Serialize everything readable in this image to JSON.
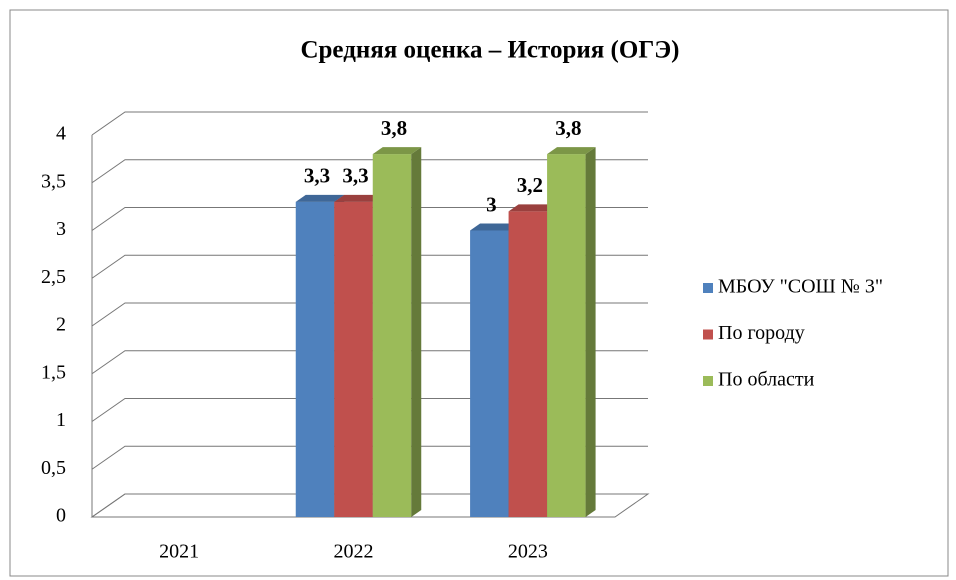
{
  "chart_data": {
    "type": "bar3d",
    "title": "Средняя оценка – История (ОГЭ)",
    "categories": [
      "2021",
      "2022",
      "2023"
    ],
    "series": [
      {
        "name": "МБОУ \"СОШ № 3\"",
        "color": "#4f81bd",
        "values": [
          null,
          3.3,
          3.0
        ],
        "value_labels": [
          null,
          "3,3",
          "3"
        ]
      },
      {
        "name": "По городу",
        "color": "#c0504d",
        "values": [
          null,
          3.3,
          3.2
        ],
        "value_labels": [
          null,
          "3,3",
          "3,2"
        ]
      },
      {
        "name": "По области",
        "color": "#9bbb59",
        "values": [
          null,
          3.8,
          3.8
        ],
        "value_labels": [
          null,
          "3,8",
          "3,8"
        ]
      }
    ],
    "ylim": [
      0,
      4
    ],
    "yticks": [
      0,
      {
        "value": 0.5,
        "label": "0,5"
      },
      1,
      {
        "value": 1.5,
        "label": "1,5"
      },
      2,
      {
        "value": 2.5,
        "label": "2,5"
      },
      3,
      {
        "value": 3.5,
        "label": "3,5"
      },
      4
    ],
    "grid": true,
    "legend": "right"
  }
}
